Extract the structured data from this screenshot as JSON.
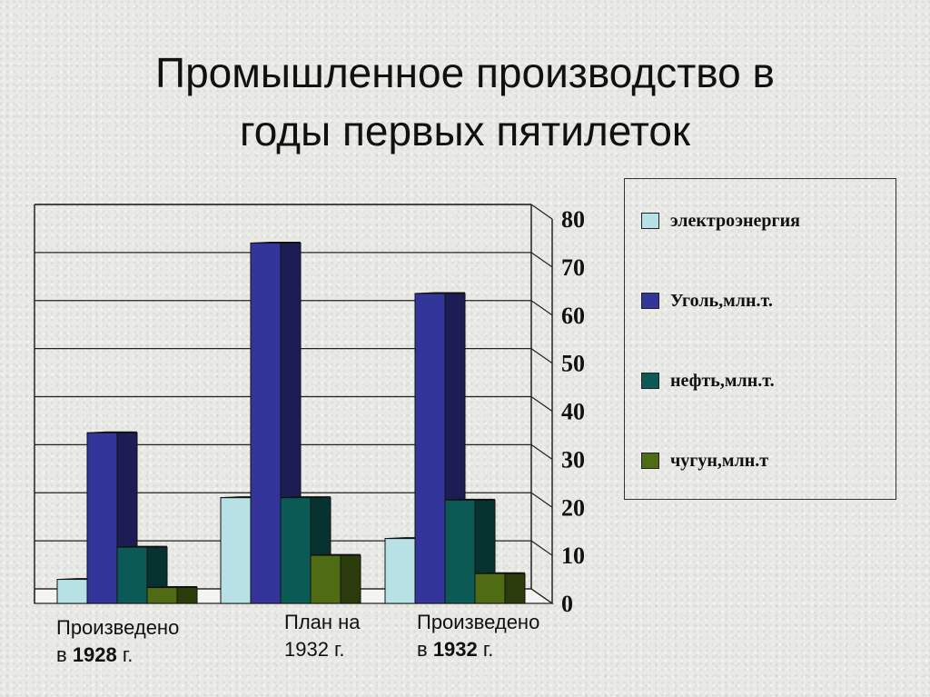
{
  "title": {
    "line1": "Промышленное производство в",
    "line2": "годы первых пятилеток"
  },
  "chart_data": {
    "type": "bar",
    "categories": [
      "Произведено в 1928 г.",
      "План на 1932 г.",
      "Произведено в 1932 г."
    ],
    "category_labels": [
      {
        "line1": "Произведено",
        "line2_pre": "в ",
        "line2_bold": "1928",
        "line2_post": " г."
      },
      {
        "line1": "План на",
        "line2_pre": "1932 г.",
        "line2_bold": "",
        "line2_post": ""
      },
      {
        "line1": "Произведено",
        "line2_pre": "в ",
        "line2_bold": "1932",
        "line2_post": " г."
      }
    ],
    "series": [
      {
        "name": "электроэнергия",
        "values": [
          5,
          22,
          13.5
        ],
        "color": "#b7e1e4"
      },
      {
        "name": "Уголь,млн.т.",
        "values": [
          35.5,
          75,
          64.5
        ],
        "color": "#34359a"
      },
      {
        "name": "нефть,млн.т.",
        "values": [
          11.7,
          22,
          21.5
        ],
        "color": "#0b5a55"
      },
      {
        "name": "чугун,млн.т",
        "values": [
          3.3,
          10,
          6.2
        ],
        "color": "#4f6b14"
      }
    ],
    "ylim": [
      0,
      80
    ],
    "yticks": [
      "0",
      "10",
      "20",
      "30",
      "40",
      "50",
      "60",
      "70",
      "80"
    ],
    "grid": true,
    "y_axis_side": "right",
    "legend_position": "right",
    "xlabel": "",
    "ylabel": ""
  }
}
